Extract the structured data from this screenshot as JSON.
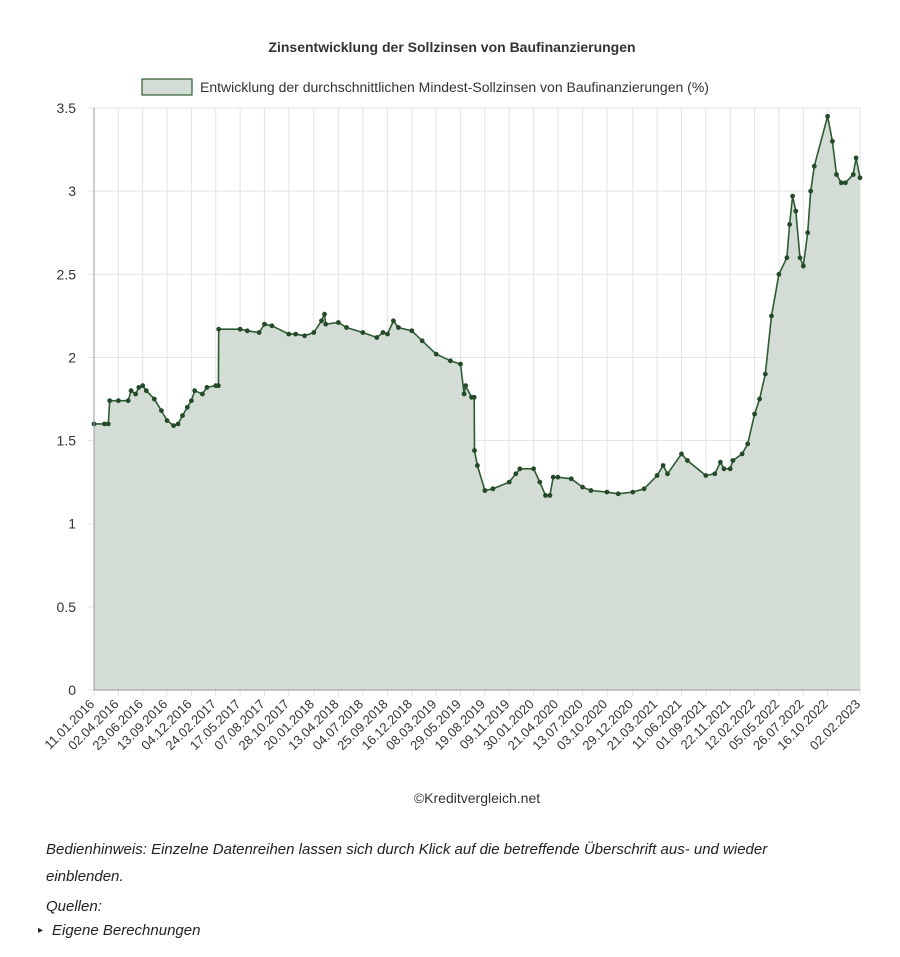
{
  "chart_data": {
    "type": "area",
    "title": "Zinsentwicklung der Sollzinsen von Baufinanzierungen",
    "credit": "©Kreditvergleich.net",
    "legend_position": "top",
    "grid": true,
    "ylim": [
      0,
      3.5
    ],
    "y_ticks": [
      "0",
      "0.5",
      "1",
      "1.5",
      "2",
      "2.5",
      "3",
      "3.5"
    ],
    "x_tick_labels": [
      "11.01.2016",
      "02.04.2016",
      "23.06.2016",
      "13.09.2016",
      "04.12.2016",
      "24.02.2017",
      "17.05.2017",
      "07.08.2017",
      "28.10.2017",
      "20.01.2018",
      "13.04.2018",
      "04.07.2018",
      "25.09.2018",
      "16.12.2018",
      "08.03.2019",
      "29.05.2019",
      "19.08.2019",
      "09.11.2019",
      "30.01.2020",
      "21.04.2020",
      "13.07.2020",
      "03.10.2020",
      "29.12.2020",
      "21.03.2021",
      "11.06.2021",
      "01.09.2021",
      "22.11.2021",
      "12.02.2022",
      "05.05.2022",
      "26.07.2022",
      "16.10.2022",
      "02.02.2023"
    ],
    "colors": {
      "line": "#2e5b34",
      "fill": "#d3ddd5",
      "point": "#244a29",
      "grid": "#e3e3e3",
      "axis": "#999999"
    },
    "series": [
      {
        "name": "Entwicklung der durchschnittlichen Mindest-Sollzinsen von Baufinanzierungen (%)",
        "points": [
          [
            "11.01.2016",
            1.6
          ],
          [
            "15.02.2016",
            1.6
          ],
          [
            "28.02.2016",
            1.6
          ],
          [
            "04.03.2016",
            1.74
          ],
          [
            "02.04.2016",
            1.74
          ],
          [
            "05.05.2016",
            1.74
          ],
          [
            "15.05.2016",
            1.8
          ],
          [
            "30.05.2016",
            1.78
          ],
          [
            "10.06.2016",
            1.82
          ],
          [
            "23.06.2016",
            1.83
          ],
          [
            "05.07.2016",
            1.8
          ],
          [
            "01.08.2016",
            1.75
          ],
          [
            "25.08.2016",
            1.68
          ],
          [
            "13.09.2016",
            1.62
          ],
          [
            "05.10.2016",
            1.59
          ],
          [
            "20.10.2016",
            1.6
          ],
          [
            "04.11.2016",
            1.65
          ],
          [
            "20.11.2016",
            1.7
          ],
          [
            "04.12.2016",
            1.74
          ],
          [
            "15.12.2016",
            1.8
          ],
          [
            "10.01.2017",
            1.78
          ],
          [
            "25.01.2017",
            1.82
          ],
          [
            "24.02.2017",
            1.83
          ],
          [
            "05.03.2017",
            1.83
          ],
          [
            "06.03.2017",
            2.17
          ],
          [
            "17.05.2017",
            2.17
          ],
          [
            "10.06.2017",
            2.16
          ],
          [
            "20.07.2017",
            2.15
          ],
          [
            "07.08.2017",
            2.2
          ],
          [
            "01.09.2017",
            2.19
          ],
          [
            "28.10.2017",
            2.14
          ],
          [
            "20.11.2017",
            2.14
          ],
          [
            "20.12.2017",
            2.13
          ],
          [
            "20.01.2018",
            2.15
          ],
          [
            "15.02.2018",
            2.22
          ],
          [
            "25.02.2018",
            2.26
          ],
          [
            "01.03.2018",
            2.2
          ],
          [
            "13.04.2018",
            2.21
          ],
          [
            "10.05.2018",
            2.18
          ],
          [
            "04.07.2018",
            2.15
          ],
          [
            "20.08.2018",
            2.12
          ],
          [
            "10.09.2018",
            2.15
          ],
          [
            "25.09.2018",
            2.14
          ],
          [
            "15.10.2018",
            2.22
          ],
          [
            "01.11.2018",
            2.18
          ],
          [
            "16.12.2018",
            2.16
          ],
          [
            "20.01.2019",
            2.1
          ],
          [
            "08.03.2019",
            2.02
          ],
          [
            "25.04.2019",
            1.98
          ],
          [
            "29.05.2019",
            1.96
          ],
          [
            "10.06.2019",
            1.78
          ],
          [
            "15.06.2019",
            1.83
          ],
          [
            "05.07.2019",
            1.76
          ],
          [
            "14.07.2019",
            1.76
          ],
          [
            "15.07.2019",
            1.44
          ],
          [
            "25.07.2019",
            1.35
          ],
          [
            "19.08.2019",
            1.2
          ],
          [
            "15.09.2019",
            1.21
          ],
          [
            "09.11.2019",
            1.25
          ],
          [
            "01.12.2019",
            1.3
          ],
          [
            "15.12.2019",
            1.33
          ],
          [
            "30.01.2020",
            1.33
          ],
          [
            "20.02.2020",
            1.25
          ],
          [
            "10.03.2020",
            1.17
          ],
          [
            "25.03.2020",
            1.17
          ],
          [
            "05.04.2020",
            1.28
          ],
          [
            "21.04.2020",
            1.28
          ],
          [
            "05.06.2020",
            1.27
          ],
          [
            "13.07.2020",
            1.22
          ],
          [
            "10.08.2020",
            1.2
          ],
          [
            "03.10.2020",
            1.19
          ],
          [
            "10.11.2020",
            1.18
          ],
          [
            "29.12.2020",
            1.19
          ],
          [
            "05.02.2021",
            1.21
          ],
          [
            "21.03.2021",
            1.29
          ],
          [
            "10.04.2021",
            1.35
          ],
          [
            "25.04.2021",
            1.3
          ],
          [
            "11.06.2021",
            1.42
          ],
          [
            "01.07.2021",
            1.38
          ],
          [
            "01.09.2021",
            1.29
          ],
          [
            "01.10.2021",
            1.3
          ],
          [
            "20.10.2021",
            1.37
          ],
          [
            "01.11.2021",
            1.33
          ],
          [
            "22.11.2021",
            1.33
          ],
          [
            "01.12.2021",
            1.38
          ],
          [
            "01.01.2022",
            1.42
          ],
          [
            "20.01.2022",
            1.48
          ],
          [
            "12.02.2022",
            1.66
          ],
          [
            "01.03.2022",
            1.75
          ],
          [
            "20.03.2022",
            1.9
          ],
          [
            "10.04.2022",
            2.25
          ],
          [
            "05.05.2022",
            2.5
          ],
          [
            "01.06.2022",
            2.6
          ],
          [
            "10.06.2022",
            2.8
          ],
          [
            "20.06.2022",
            2.97
          ],
          [
            "01.07.2022",
            2.88
          ],
          [
            "15.07.2022",
            2.6
          ],
          [
            "26.07.2022",
            2.55
          ],
          [
            "10.08.2022",
            2.75
          ],
          [
            "20.08.2022",
            3.0
          ],
          [
            "01.09.2022",
            3.15
          ],
          [
            "16.10.2022",
            3.45
          ],
          [
            "01.11.2022",
            3.3
          ],
          [
            "15.11.2022",
            3.1
          ],
          [
            "01.12.2022",
            3.05
          ],
          [
            "15.12.2022",
            3.05
          ],
          [
            "10.01.2023",
            3.1
          ],
          [
            "20.01.2023",
            3.2
          ],
          [
            "02.02.2023",
            3.08
          ]
        ]
      }
    ]
  },
  "notes": {
    "hint": "Bedienhinweis: Einzelne Datenreihen lassen sich durch Klick auf die betreffende Überschrift aus- und wieder einblenden.",
    "sources_label": "Quellen:",
    "sources": [
      "Eigene Berechnungen"
    ]
  }
}
